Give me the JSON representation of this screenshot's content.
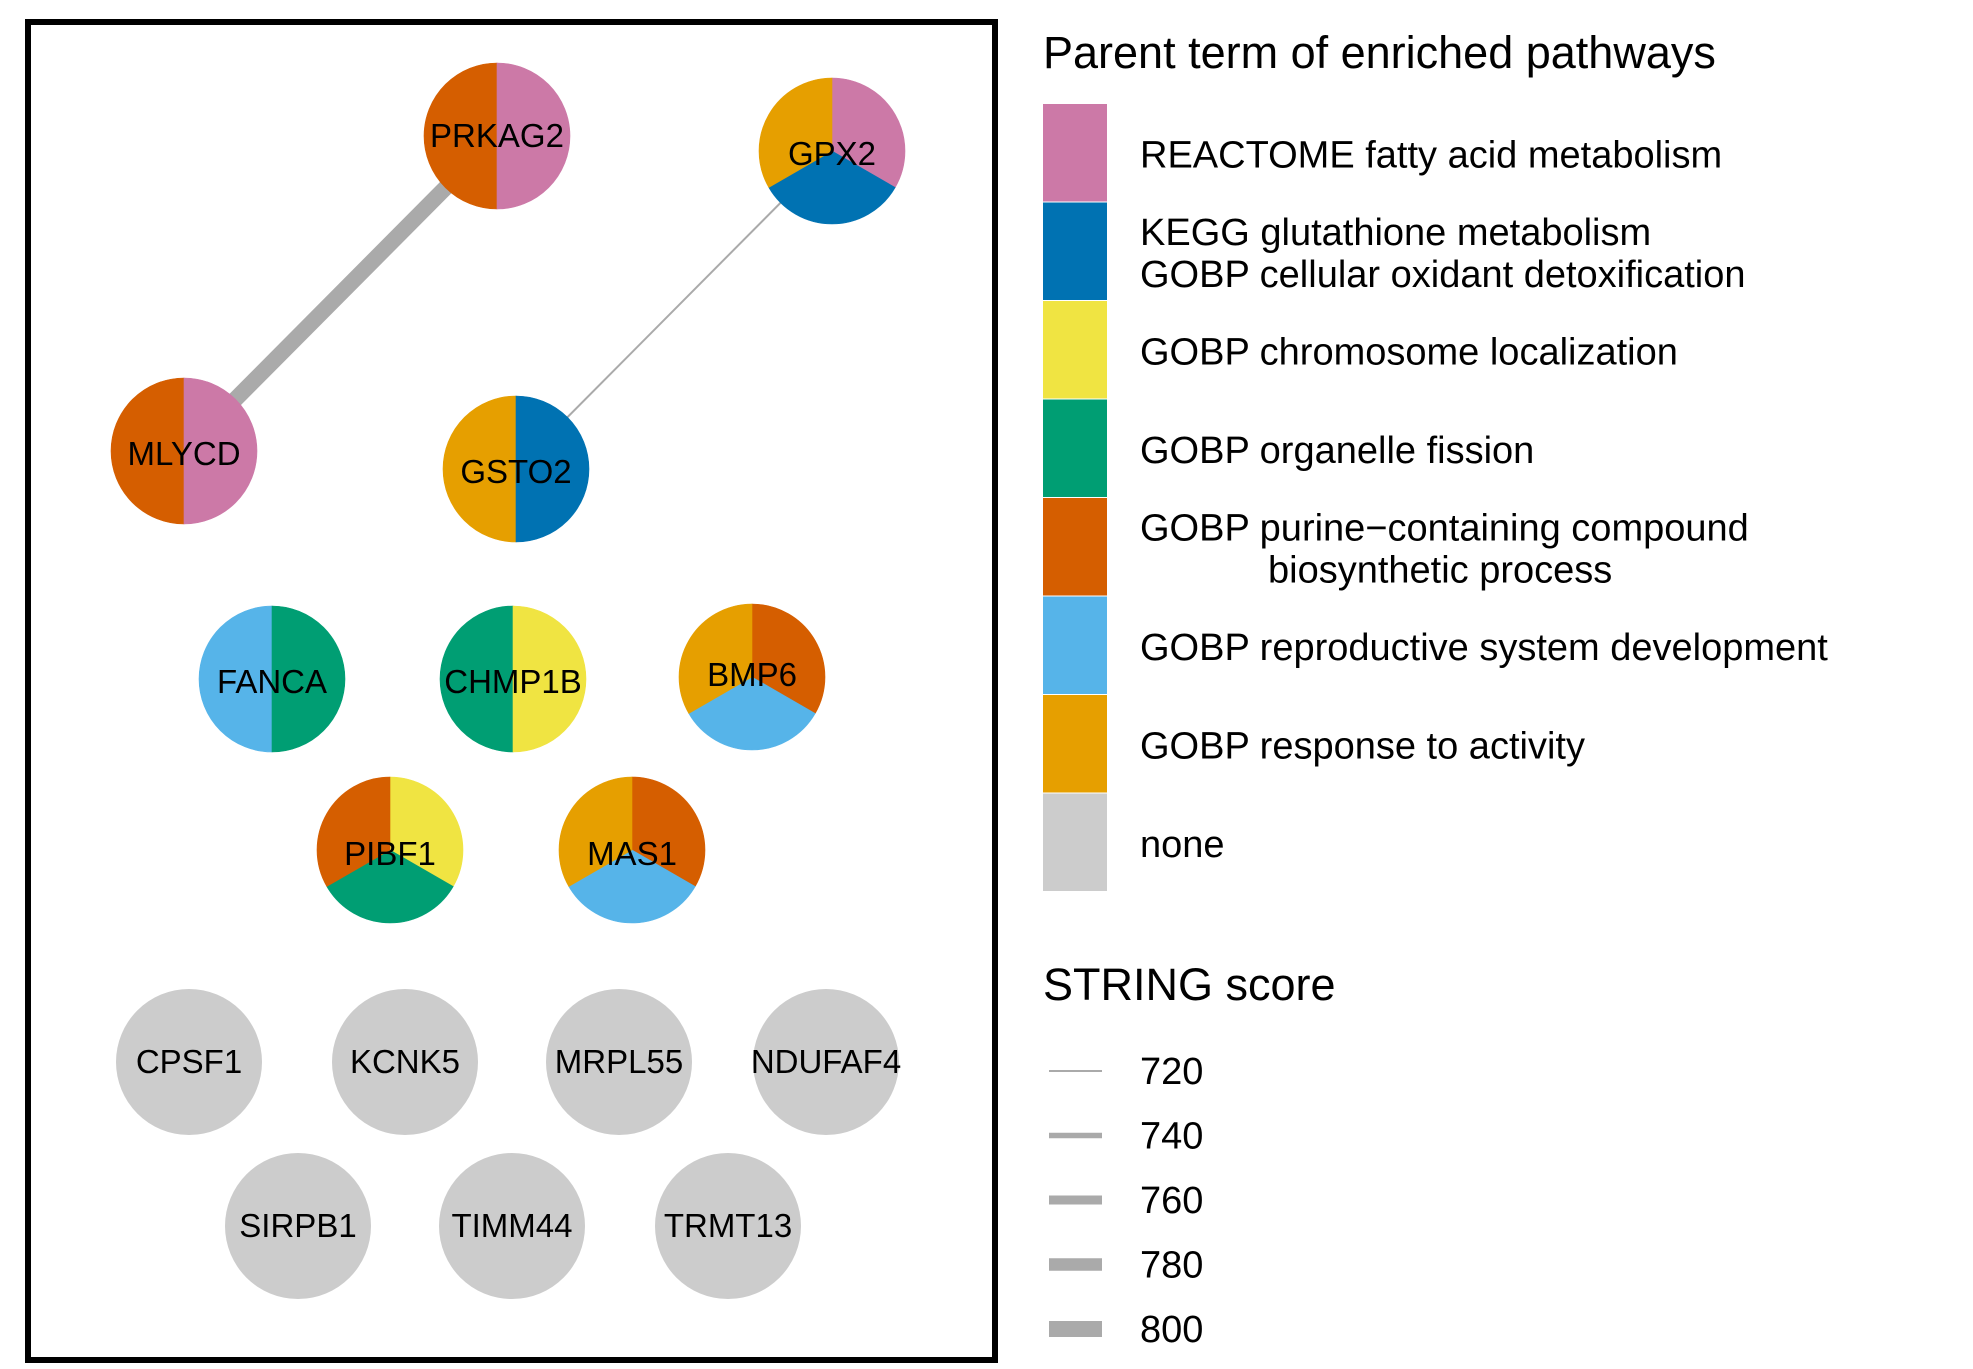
{
  "colors": {
    "reactome_fatty_acid": "#CC79A7",
    "kegg_glutathione_gobp_oxidant": "#0072B2",
    "gobp_chromosome_localization": "#F0E442",
    "gobp_organelle_fission": "#009E73",
    "gobp_purine_biosynthetic": "#D55E00",
    "gobp_reproductive_development": "#56B4E9",
    "gobp_response_to_activity": "#E69F00",
    "none": "#CCCCCC",
    "edge": "#AAAAAA",
    "frame": "#000000"
  },
  "legend": {
    "pathways": {
      "title": "Parent term of enriched pathways",
      "items": [
        {
          "key": "reactome_fatty_acid",
          "lines": [
            "REACTOME fatty acid metabolism"
          ]
        },
        {
          "key": "kegg_glutathione_gobp_oxidant",
          "lines": [
            "KEGG glutathione metabolism",
            "GOBP cellular oxidant detoxification"
          ]
        },
        {
          "key": "gobp_chromosome_localization",
          "lines": [
            "GOBP chromosome localization"
          ]
        },
        {
          "key": "gobp_organelle_fission",
          "lines": [
            "GOBP organelle fission"
          ]
        },
        {
          "key": "gobp_purine_biosynthetic",
          "lines": [
            "GOBP purine−containing compound",
            "biosynthetic process"
          ]
        },
        {
          "key": "gobp_reproductive_development",
          "lines": [
            "GOBP reproductive system development"
          ]
        },
        {
          "key": "gobp_response_to_activity",
          "lines": [
            "GOBP response to activity"
          ]
        },
        {
          "key": "none",
          "lines": [
            "none"
          ]
        }
      ]
    },
    "string_score": {
      "title": "STRING score",
      "values": [
        720,
        740,
        760,
        780,
        800
      ]
    }
  },
  "network": {
    "nodes": [
      {
        "id": "PRKAG2",
        "slices": [
          "gobp_purine_biosynthetic",
          "reactome_fatty_acid"
        ]
      },
      {
        "id": "GPX2",
        "slices": [
          "reactome_fatty_acid",
          "kegg_glutathione_gobp_oxidant",
          "gobp_response_to_activity"
        ]
      },
      {
        "id": "MLYCD",
        "slices": [
          "gobp_purine_biosynthetic",
          "reactome_fatty_acid"
        ]
      },
      {
        "id": "GSTO2",
        "slices": [
          "gobp_response_to_activity",
          "kegg_glutathione_gobp_oxidant"
        ]
      },
      {
        "id": "FANCA",
        "slices": [
          "gobp_reproductive_development",
          "gobp_organelle_fission"
        ]
      },
      {
        "id": "CHMP1B",
        "slices": [
          "gobp_organelle_fission",
          "gobp_chromosome_localization"
        ]
      },
      {
        "id": "BMP6",
        "slices": [
          "gobp_purine_biosynthetic",
          "gobp_reproductive_development",
          "gobp_response_to_activity"
        ]
      },
      {
        "id": "PIBF1",
        "slices": [
          "gobp_chromosome_localization",
          "gobp_organelle_fission",
          "gobp_purine_biosynthetic"
        ]
      },
      {
        "id": "MAS1",
        "slices": [
          "gobp_purine_biosynthetic",
          "gobp_reproductive_development",
          "gobp_response_to_activity"
        ]
      },
      {
        "id": "CPSF1",
        "slices": [
          "none"
        ]
      },
      {
        "id": "KCNK5",
        "slices": [
          "none"
        ]
      },
      {
        "id": "MRPL55",
        "slices": [
          "none"
        ]
      },
      {
        "id": "NDUFAF4",
        "slices": [
          "none"
        ]
      },
      {
        "id": "SIRPB1",
        "slices": [
          "none"
        ]
      },
      {
        "id": "TIMM44",
        "slices": [
          "none"
        ]
      },
      {
        "id": "TRMT13",
        "slices": [
          "none"
        ]
      }
    ],
    "edges": [
      {
        "source": "PRKAG2",
        "target": "MLYCD",
        "score": 800
      },
      {
        "source": "GPX2",
        "target": "GSTO2",
        "score": 720
      }
    ]
  }
}
